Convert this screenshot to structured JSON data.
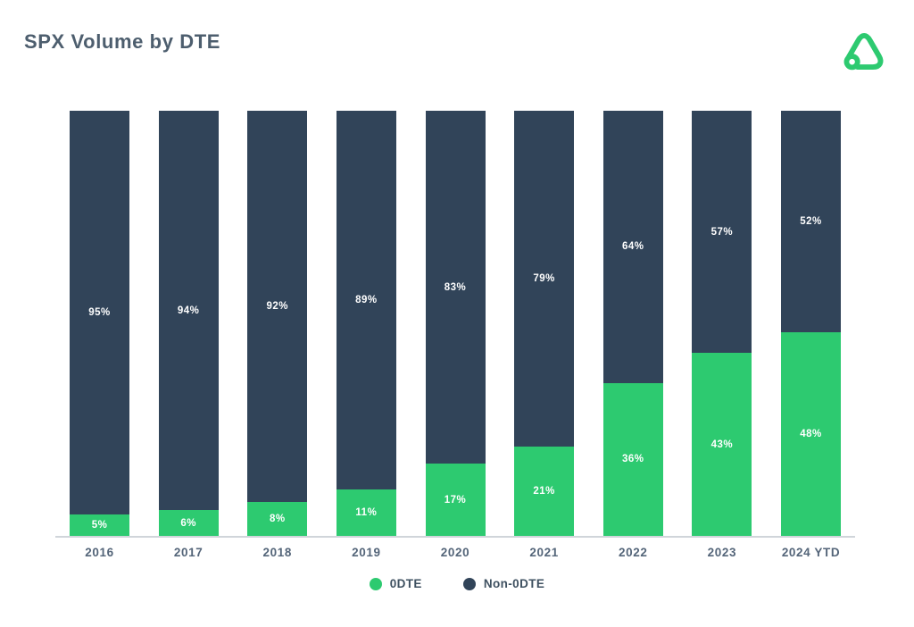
{
  "header": {
    "title": "SPX Volume by DTE"
  },
  "brand": {
    "logo_icon": "option-alpha-triangle-loop-logo",
    "logo_color": "#2dca70"
  },
  "chart_data": {
    "type": "bar",
    "variant": "stacked-100-percent",
    "title": "SPX Volume by DTE",
    "categories": [
      "2016",
      "2017",
      "2018",
      "2019",
      "2020",
      "2021",
      "2022",
      "2023",
      "2024 YTD"
    ],
    "series": [
      {
        "name": "0DTE",
        "color": "#2dca70",
        "values": [
          5,
          6,
          8,
          11,
          17,
          21,
          36,
          43,
          48
        ]
      },
      {
        "name": "Non-0DTE",
        "color": "#314459",
        "values": [
          95,
          94,
          92,
          89,
          83,
          79,
          64,
          57,
          52
        ]
      }
    ],
    "value_suffix": "%",
    "ylim": [
      0,
      100
    ],
    "grid": false,
    "y_axis_visible": false,
    "legend_position": "bottom",
    "bar_label_color": "#ffffff",
    "axis_label_color": "#546579",
    "baseline_color": "#d0d5da"
  }
}
